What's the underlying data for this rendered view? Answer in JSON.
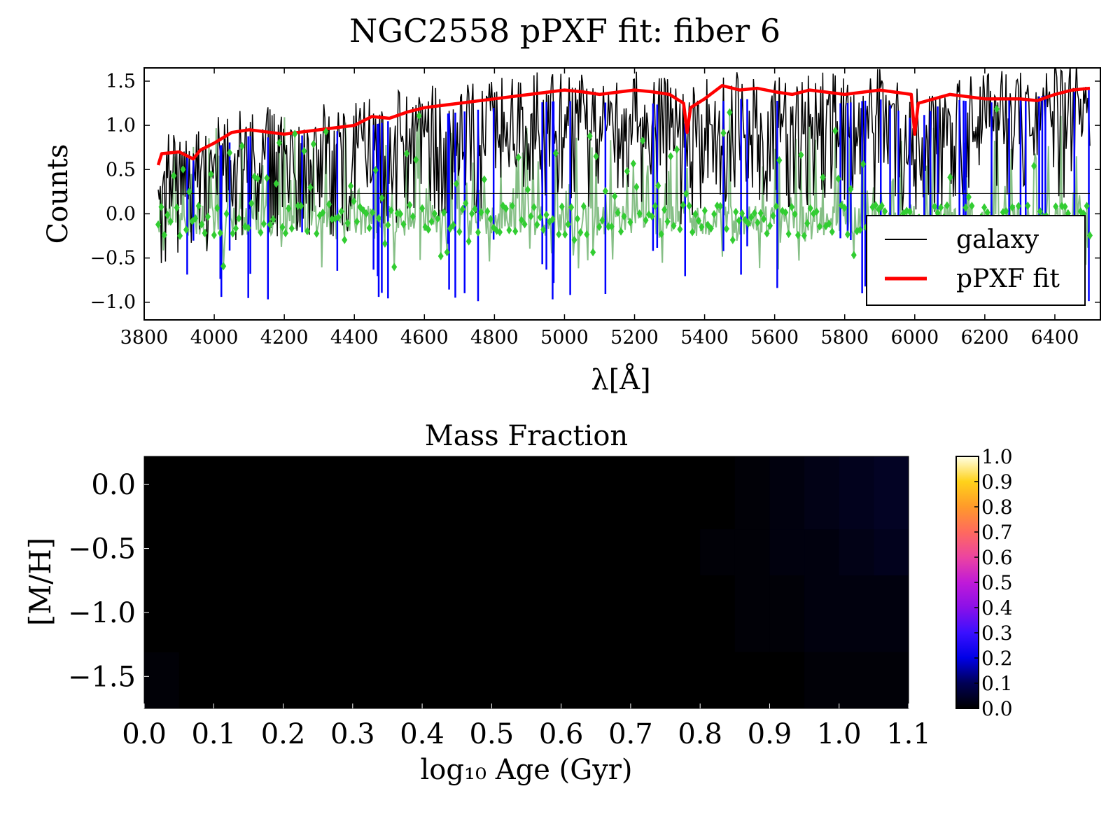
{
  "figure_title": "NGC2558 pPXF fit: fiber 6",
  "colors": {
    "galaxy": "#000000",
    "fit": "#ff0000",
    "residuals": "#32cd32",
    "residual_line": "#228b22",
    "masked": "#0000ff",
    "background": "#ffffff"
  },
  "chart_data": [
    {
      "type": "line",
      "title": "",
      "xlabel": "λ[Å]",
      "ylabel": "Counts",
      "xlim": [
        3800,
        6530
      ],
      "ylim": [
        -1.2,
        1.65
      ],
      "x_ticks": [
        3800,
        4000,
        4200,
        4400,
        4600,
        4800,
        5000,
        5200,
        5400,
        5600,
        5800,
        6000,
        6200,
        6400
      ],
      "x_tick_labels": [
        "3800",
        "4000",
        "4200",
        "4400",
        "4600",
        "4800",
        "5000",
        "5200",
        "5400",
        "5600",
        "5800",
        "6000",
        "6200",
        "6400"
      ],
      "y_ticks": [
        -1.0,
        -0.5,
        0.0,
        0.5,
        1.0,
        1.5
      ],
      "y_tick_labels": [
        "−1.0",
        "−0.5",
        "0.0",
        "0.5",
        "1.0",
        "1.5"
      ],
      "grid": false,
      "legend_position": "lower-right",
      "legend": [
        "galaxy",
        "pPXF fit"
      ],
      "reference_line_y": 0.23,
      "reference_line_x_range": [
        3850,
        6500
      ],
      "series": [
        {
          "name": "galaxy",
          "x": [
            3840,
            3900,
            3960,
            4000,
            4100,
            4200,
            4300,
            4400,
            4500,
            4600,
            4700,
            4800,
            4900,
            5000,
            5100,
            5200,
            5300,
            5350,
            5400,
            5500,
            5600,
            5700,
            5800,
            5900,
            6000,
            6100,
            6200,
            6300,
            6400,
            6500
          ],
          "y": [
            0.55,
            0.65,
            0.6,
            0.75,
            0.88,
            0.85,
            0.92,
            0.95,
            1.05,
            1.1,
            1.15,
            1.2,
            1.25,
            1.28,
            1.25,
            1.3,
            1.2,
            1.0,
            1.25,
            1.3,
            1.28,
            1.25,
            1.25,
            1.3,
            1.05,
            1.3,
            1.25,
            1.3,
            1.35,
            1.4
          ]
        },
        {
          "name": "pPXF fit",
          "x": [
            3840,
            3850,
            3900,
            3940,
            3960,
            4000,
            4050,
            4100,
            4200,
            4300,
            4400,
            4450,
            4500,
            4550,
            4600,
            4700,
            4800,
            4900,
            5000,
            5050,
            5100,
            5200,
            5250,
            5300,
            5340,
            5350,
            5360,
            5400,
            5450,
            5500,
            5550,
            5600,
            5650,
            5700,
            5800,
            5900,
            5990,
            6000,
            6010,
            6100,
            6200,
            6300,
            6350,
            6400,
            6450,
            6500
          ],
          "y": [
            0.55,
            0.68,
            0.7,
            0.62,
            0.72,
            0.8,
            0.92,
            0.95,
            0.9,
            0.95,
            1.0,
            1.1,
            1.08,
            1.15,
            1.2,
            1.25,
            1.3,
            1.35,
            1.4,
            1.38,
            1.35,
            1.4,
            1.38,
            1.35,
            1.25,
            0.92,
            1.2,
            1.3,
            1.45,
            1.4,
            1.42,
            1.38,
            1.35,
            1.4,
            1.35,
            1.4,
            1.35,
            0.9,
            1.25,
            1.35,
            1.3,
            1.3,
            1.28,
            1.35,
            1.4,
            1.42
          ]
        }
      ]
    },
    {
      "type": "heatmap",
      "title": "Mass Fraction",
      "xlabel": "log₁₀ Age (Gyr)",
      "ylabel": "[M/H]",
      "xlim": [
        0.0,
        1.1
      ],
      "ylim": [
        -1.75,
        0.22
      ],
      "x_ticks": [
        0.0,
        0.1,
        0.2,
        0.3,
        0.4,
        0.5,
        0.6,
        0.7,
        0.8,
        0.9,
        1.0,
        1.1
      ],
      "x_tick_labels": [
        "0.0",
        "0.1",
        "0.2",
        "0.3",
        "0.4",
        "0.5",
        "0.6",
        "0.7",
        "0.8",
        "0.9",
        "1.0",
        "1.1"
      ],
      "y_ticks": [
        0.0,
        -0.5,
        -1.0,
        -1.5
      ],
      "y_tick_labels": [
        "0.0",
        "−0.5",
        "−1.0",
        "−1.5"
      ],
      "colorbar_ticks": [
        0.0,
        0.1,
        0.2,
        0.3,
        0.4,
        0.5,
        0.6,
        0.7,
        0.8,
        0.9,
        1.0
      ],
      "colorbar_tick_labels": [
        "0.0",
        "0.1",
        "0.2",
        "0.3",
        "0.4",
        "0.5",
        "0.6",
        "0.7",
        "0.8",
        "0.9",
        "1.0"
      ],
      "colorbar_range": [
        0.0,
        1.0
      ],
      "metallicity_rows": [
        0.22,
        -0.35,
        -0.71,
        -1.31,
        -1.75
      ],
      "age_columns": 22,
      "values": [
        [
          0,
          0,
          0,
          0,
          0,
          0,
          0,
          0,
          0,
          0,
          0,
          0,
          0,
          0,
          0,
          0,
          0,
          0.01,
          0.02,
          0.03,
          0.04,
          0.05
        ],
        [
          0,
          0,
          0,
          0,
          0,
          0,
          0,
          0,
          0,
          0,
          0,
          0,
          0,
          0,
          0,
          0,
          0.01,
          0.01,
          0.02,
          0.02,
          0.03,
          0.04
        ],
        [
          0,
          0,
          0,
          0,
          0,
          0,
          0,
          0,
          0,
          0,
          0,
          0,
          0,
          0,
          0,
          0,
          0,
          0.01,
          0.01,
          0.02,
          0.02,
          0.02
        ],
        [
          0.01,
          0,
          0,
          0,
          0,
          0,
          0,
          0,
          0,
          0,
          0,
          0,
          0,
          0,
          0,
          0,
          0,
          0,
          0,
          0.01,
          0.01,
          0.01
        ],
        [
          0.01,
          0.01,
          0,
          0,
          0,
          0,
          0,
          0,
          0,
          0,
          0,
          0,
          0,
          0,
          0,
          0,
          0,
          0,
          0,
          0,
          0,
          0
        ]
      ]
    }
  ]
}
